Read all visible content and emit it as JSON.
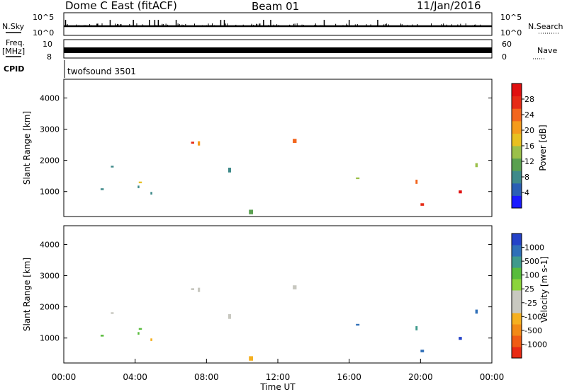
{
  "header": {
    "station": "Dome C East (fitACF)",
    "beam": "Beam 01",
    "date": "11/Jan/2016"
  },
  "side_labels": {
    "nsky": "N.Sky",
    "freq_top": "Freq.",
    "freq_unit": "[MHz]",
    "cpid": "CPID",
    "nsearch": "N.Search",
    "nave": "Nave"
  },
  "cpid_text": "twofsound 3501",
  "chart_data": [
    {
      "type": "line",
      "name": "noise-panel",
      "left_ticks": [
        "10^5",
        "10^0"
      ],
      "right_ticks": [
        "10^5",
        "10^0"
      ],
      "baseline": 0.25,
      "spikes_x_hours": [
        0.1,
        2.6,
        3.9,
        4.8,
        5.1,
        5.3,
        6.3,
        8.8,
        9.0,
        11.2,
        11.6,
        14.6,
        16.0,
        17.6
      ]
    },
    {
      "type": "line",
      "name": "freq-panel",
      "left_ticks": [
        "10",
        "8"
      ],
      "right_ticks": [
        "60",
        "0"
      ],
      "frequency_band_mhz": [
        9.6,
        10.3
      ]
    },
    {
      "type": "heatmap",
      "name": "power",
      "ylabel": "Slant Range [km]",
      "yticks": [
        1000,
        2000,
        3000,
        4000
      ],
      "ylim": [
        200,
        4600
      ],
      "colorbar_label": "Power [dB]",
      "colorbar_ticks": [
        4,
        8,
        12,
        16,
        20,
        24,
        28
      ],
      "colorbar_colors": [
        "#1a1aff",
        "#2b5fb5",
        "#3f8a8a",
        "#5aa050",
        "#9bc04a",
        "#e8c020",
        "#f59b1c",
        "#f2661e",
        "#e62b16",
        "#e01010"
      ]
    },
    {
      "type": "heatmap",
      "name": "velocity",
      "ylabel": "Slant Range [km]",
      "yticks": [
        1000,
        2000,
        3000,
        4000
      ],
      "ylim": [
        200,
        4600
      ],
      "xlabel": "Time UT",
      "xticks": [
        "00:00",
        "04:00",
        "08:00",
        "12:00",
        "16:00",
        "20:00",
        "00:00"
      ],
      "colorbar_label": "Velocity [m s-1]",
      "colorbar_ticks": [
        "1000",
        "500",
        "100",
        "25",
        "-25",
        "-100",
        "-500",
        "-1000"
      ],
      "colorbar_colors": [
        "#2442c8",
        "#2f6fb8",
        "#3f9a8c",
        "#58bc3c",
        "#8cd43c",
        "#c8c8c0",
        "#c8c8c0",
        "#f5b020",
        "#f28a16",
        "#f05c14",
        "#e82a14"
      ]
    }
  ]
}
